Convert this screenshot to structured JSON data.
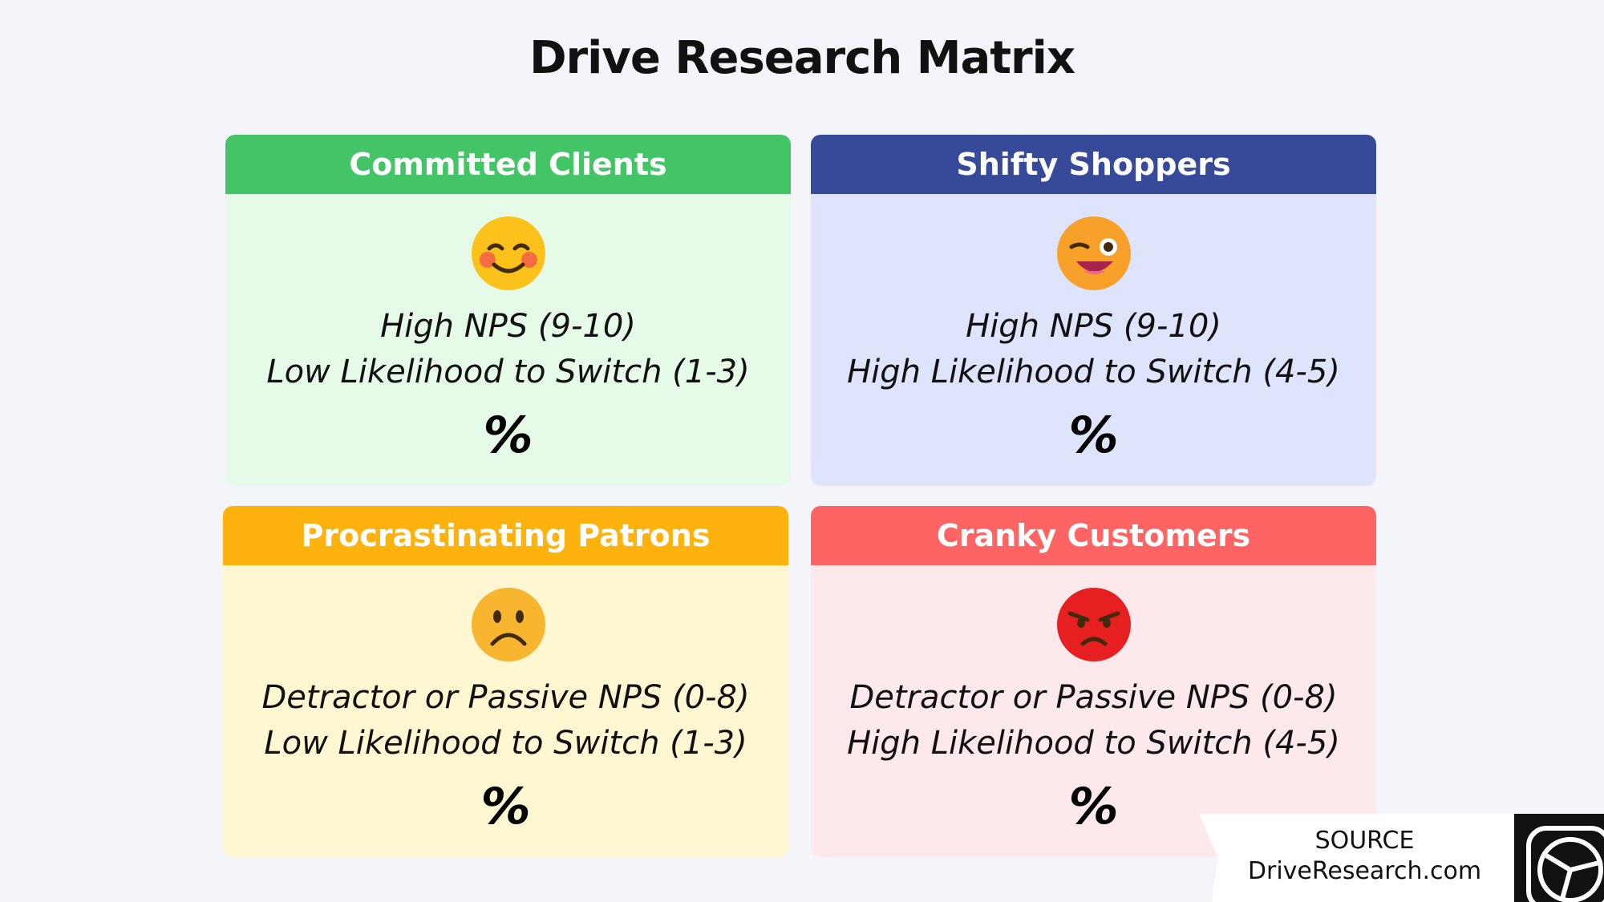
{
  "title": "Drive Research Matrix",
  "quadrants": [
    {
      "header": "Committed Clients",
      "lines": [
        "High NPS (9-10)",
        "Low Likelihood to Switch (1-3)"
      ],
      "value": "%"
    },
    {
      "header": "Shifty Shoppers",
      "lines": [
        "High NPS (9-10)",
        "High Likelihood to Switch (4-5)"
      ],
      "value": "%"
    },
    {
      "header": "Procrastinating Patrons",
      "lines": [
        "Detractor or Passive NPS (0-8)",
        "Low Likelihood to Switch (1-3)"
      ],
      "value": "%"
    },
    {
      "header": "Cranky Customers",
      "lines": [
        "Detractor or Passive NPS (0-8)",
        "High Likelihood to Switch (4-5)"
      ],
      "value": "%"
    }
  ],
  "source": {
    "label": "SOURCE",
    "site": "DriveResearch.com"
  }
}
